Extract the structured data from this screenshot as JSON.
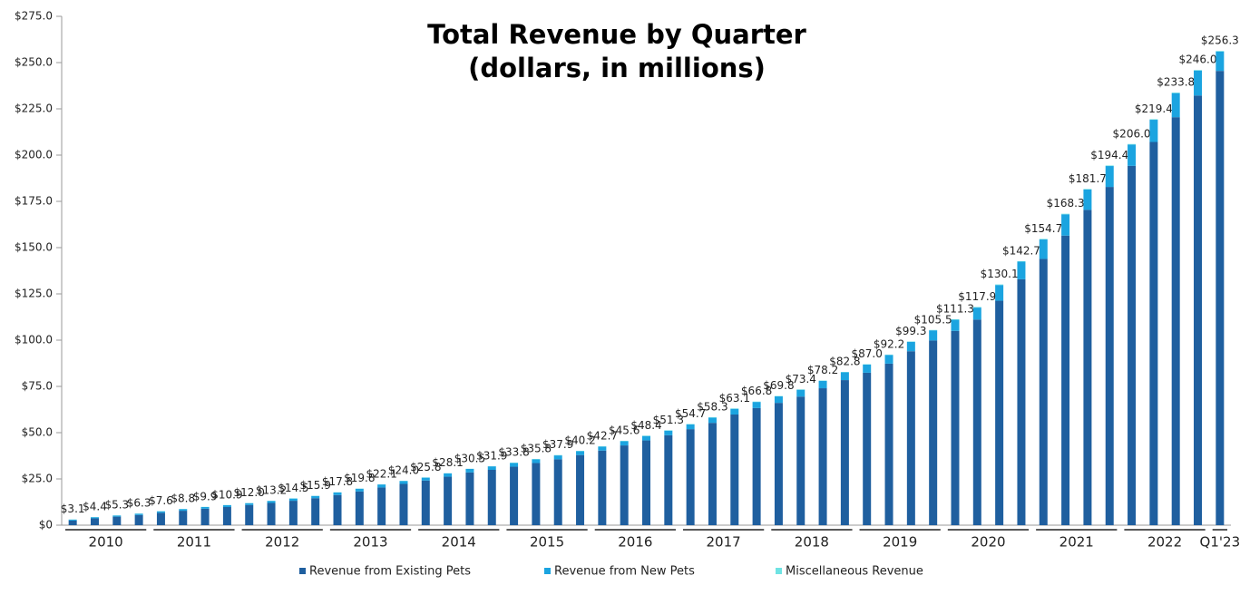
{
  "chart_data": {
    "type": "stacked_bar",
    "title": [
      "Total Revenue by Quarter",
      "(dollars, in millions)"
    ],
    "categories": [
      null,
      null,
      null,
      null,
      null,
      null,
      null,
      null,
      null,
      null,
      null,
      null,
      null,
      null,
      null,
      null,
      null,
      null,
      null,
      null,
      null,
      null,
      null,
      null,
      null,
      null,
      null,
      null,
      null,
      null,
      null,
      null,
      null,
      null,
      null,
      null,
      null,
      null,
      null,
      null,
      null,
      null,
      null,
      null,
      null,
      null,
      null,
      null,
      null,
      null,
      null,
      null,
      null
    ],
    "groups": [
      "2010",
      "2011",
      "2012",
      "2013",
      "2014",
      "2015",
      "2016",
      "2017",
      "2018",
      "2019",
      "2020",
      "2021",
      "2022",
      "Q1'23"
    ],
    "series": [
      {
        "name": "Revenue from Existing Pets",
        "color": "#1f5f9f",
        "values": [
          2.5,
          3.7,
          4.6,
          5.5,
          6.7,
          7.8,
          8.9,
          9.8,
          10.9,
          12.0,
          13.2,
          14.6,
          16.3,
          18.2,
          20.4,
          22.3,
          24.1,
          26.2,
          28.5,
          29.9,
          31.6,
          33.6,
          35.6,
          37.9,
          40.3,
          43.1,
          45.8,
          48.6,
          51.9,
          55.3,
          59.8,
          63.3,
          66.1,
          69.5,
          74.0,
          78.4,
          82.4,
          87.3,
          94.0,
          99.8,
          105.0,
          111.1,
          121.3,
          132.9,
          143.9,
          156.5,
          170.4,
          182.8,
          194.2,
          207.1,
          220.5,
          232.2,
          245.5
        ]
      },
      {
        "name": "Revenue from New Pets",
        "color": "#1ba4e0",
        "values": [
          0.5,
          0.6,
          0.6,
          0.7,
          0.8,
          0.9,
          0.9,
          1.0,
          1.0,
          1.1,
          1.2,
          1.2,
          1.4,
          1.5,
          1.6,
          1.6,
          1.6,
          1.8,
          1.9,
          1.9,
          2.0,
          2.0,
          2.1,
          2.1,
          2.2,
          2.3,
          2.4,
          2.5,
          2.6,
          2.8,
          3.1,
          3.3,
          3.5,
          3.7,
          4.0,
          4.2,
          4.4,
          4.7,
          5.1,
          5.5,
          6.0,
          6.5,
          8.5,
          9.5,
          10.5,
          11.5,
          11.0,
          11.3,
          11.5,
          12.0,
          13.0,
          13.5,
          10.5
        ]
      },
      {
        "name": "Miscellaneous Revenue",
        "color": "#6fe3e3",
        "values": [
          0.1,
          0.1,
          0.1,
          0.1,
          0.1,
          0.1,
          0.1,
          0.1,
          0.1,
          0.1,
          0.1,
          0.1,
          0.1,
          0.1,
          0.1,
          0.1,
          0.1,
          0.1,
          0.1,
          0.1,
          0.2,
          0.2,
          0.2,
          0.2,
          0.2,
          0.2,
          0.2,
          0.2,
          0.2,
          0.2,
          0.2,
          0.2,
          0.2,
          0.2,
          0.2,
          0.2,
          0.2,
          0.2,
          0.2,
          0.2,
          0.3,
          0.3,
          0.3,
          0.3,
          0.3,
          0.3,
          0.3,
          0.3,
          0.3,
          0.3,
          0.3,
          0.3,
          0.3
        ]
      }
    ],
    "totals": [
      3.1,
      4.4,
      5.3,
      6.3,
      7.6,
      8.8,
      9.9,
      10.9,
      12.0,
      13.2,
      14.5,
      15.9,
      17.8,
      19.8,
      22.1,
      24.0,
      25.8,
      28.1,
      30.5,
      31.9,
      33.8,
      35.8,
      37.9,
      40.2,
      42.7,
      45.6,
      48.4,
      51.3,
      54.7,
      58.3,
      63.1,
      66.8,
      69.8,
      73.4,
      78.2,
      82.8,
      87.0,
      92.2,
      99.3,
      105.5,
      111.3,
      117.9,
      130.1,
      142.7,
      154.7,
      168.3,
      181.7,
      194.4,
      206.0,
      219.4,
      233.8,
      246.0,
      256.3
    ],
    "total_labels": [
      "$3.1",
      "$4.4",
      "$5.3",
      "$6.3",
      "$7.6",
      "$8.8",
      "$9.9",
      "$10.9",
      "$12.0",
      "$13.2",
      "$14.5",
      "$15.9",
      "$17.8",
      "$19.8",
      "$22.1",
      "$24.0",
      "$25.8",
      "$28.1",
      "$30.5",
      "$31.9",
      "$33.8",
      "$35.8",
      "$37.9",
      "$40.2",
      "$42.7",
      "$45.6",
      "$48.4",
      "$51.3",
      "$54.7",
      "$58.3",
      "$63.1",
      "$66.8",
      "$69.8",
      "$73.4",
      "$78.2",
      "$82.8",
      "$87.0",
      "$92.2",
      "$99.3",
      "$105.5",
      "$111.3",
      "$117.9",
      "$130.1",
      "$142.7",
      "$154.7",
      "$168.3",
      "$181.7",
      "$194.4",
      "$206.0",
      "$219.4",
      "$233.8",
      "$246.0",
      "$256.3"
    ],
    "ylim": [
      0,
      275
    ],
    "yticks": [
      {
        "value": 0,
        "label": "$0"
      },
      {
        "value": 25,
        "label": "$25.0"
      },
      {
        "value": 50,
        "label": "$50.0"
      },
      {
        "value": 75,
        "label": "$75.0"
      },
      {
        "value": 100,
        "label": "$100.0"
      },
      {
        "value": 125,
        "label": "$125.0"
      },
      {
        "value": 150,
        "label": "$150.0"
      },
      {
        "value": 175,
        "label": "$175.0"
      },
      {
        "value": 200,
        "label": "$200.0"
      },
      {
        "value": 225,
        "label": "$225.0"
      },
      {
        "value": 250,
        "label": "$250.0"
      },
      {
        "value": 275,
        "label": "$275.0"
      }
    ],
    "grid": false,
    "legend": "bottom"
  }
}
